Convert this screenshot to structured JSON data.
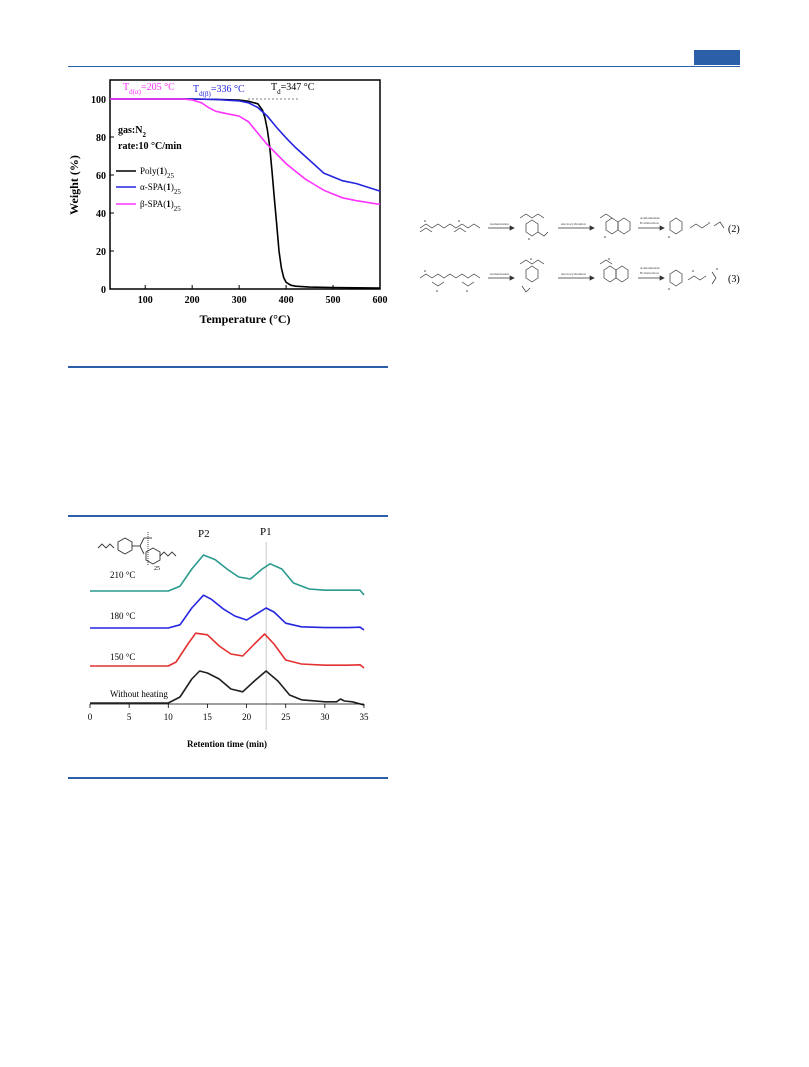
{
  "colors": {
    "accent": "#2b5fa8",
    "black": "#000000",
    "blue": "#2525e0",
    "magenta": "#ff33ff",
    "teal": "#2a9a8e",
    "red": "#e33030",
    "dark": "#202020"
  },
  "tga": {
    "ylabel": "Weight (%)",
    "xlabel": "Temperature (°C)",
    "conditions": [
      "gas:N2",
      "rate:10 °C/min"
    ],
    "annotations": {
      "td_alpha": "Td(α)=205 °C",
      "td_beta": "Td(β)=336 °C",
      "td": "Td=347 °C"
    },
    "legend": [
      "Poly(1)25",
      "α-SPA(1)25",
      "β-SPA(1)25"
    ]
  },
  "gpc": {
    "xlabel": "Retention time (min)",
    "peaks": [
      "P2",
      "P1"
    ],
    "trace_labels": [
      "210 °C",
      "180 °C",
      "150 °C",
      "Without heating"
    ],
    "structure_subscript": "25"
  },
  "schemes": {
    "eq2": "(2)",
    "eq3": "(3)",
    "step_labels": {
      "isom": "isomerization",
      "electro": "electrocyclization",
      "arom": "aromatization/",
      "habs": "H abstraction",
      "r": "R"
    }
  },
  "chart_data": [
    {
      "type": "line",
      "title": "",
      "xlabel": "Temperature (°C)",
      "ylabel": "Weight (%)",
      "xlim": [
        25,
        600
      ],
      "ylim": [
        0,
        110
      ],
      "xticks": [
        100,
        200,
        300,
        400,
        500,
        600
      ],
      "yticks": [
        0,
        20,
        40,
        60,
        80,
        100
      ],
      "legend_position": "left",
      "series": [
        {
          "name": "Poly(1)25",
          "color": "#000000",
          "x": [
            25,
            100,
            200,
            250,
            300,
            320,
            340,
            350,
            355,
            360,
            365,
            370,
            375,
            380,
            385,
            390,
            395,
            400,
            410,
            420,
            450,
            500,
            600
          ],
          "y": [
            100,
            100,
            100,
            99.8,
            99.4,
            98.8,
            97.5,
            94,
            90,
            84,
            75,
            62,
            48,
            34,
            20,
            11,
            6,
            3.5,
            2,
            1.5,
            1,
            0.8,
            0.5
          ]
        },
        {
          "name": "α-SPA(1)25",
          "color": "#2525e0",
          "x": [
            25,
            100,
            200,
            250,
            300,
            320,
            340,
            360,
            380,
            400,
            420,
            440,
            460,
            480,
            500,
            520,
            550,
            600
          ],
          "y": [
            100,
            100,
            100,
            99.8,
            99,
            98,
            95.5,
            91,
            85,
            79.5,
            74.5,
            70,
            65.5,
            61,
            59,
            57,
            55.5,
            51.5
          ]
        },
        {
          "name": "β-SPA(1)25",
          "color": "#ff33ff",
          "x": [
            25,
            100,
            180,
            200,
            220,
            235,
            250,
            270,
            300,
            320,
            340,
            360,
            380,
            400,
            420,
            440,
            460,
            480,
            500,
            520,
            550,
            600
          ],
          "y": [
            100,
            100,
            100,
            99.5,
            98,
            95.5,
            93.5,
            92.5,
            91,
            88,
            82,
            76,
            71,
            66,
            62,
            58,
            55,
            52,
            50,
            48,
            46.5,
            44.5
          ]
        }
      ]
    },
    {
      "type": "line",
      "title": "",
      "xlabel": "Retention time (min)",
      "ylabel": "",
      "xlim": [
        0,
        35
      ],
      "xticks": [
        0,
        5,
        10,
        15,
        20,
        25,
        30,
        35
      ],
      "reference_line_x": 22.5,
      "series": [
        {
          "name": "210 °C",
          "color": "#2a9a8e",
          "x": [
            0,
            10,
            11.5,
            13,
            14.5,
            16,
            17.5,
            19,
            20.5,
            22,
            23,
            24.5,
            26,
            28,
            30,
            33,
            34.5,
            35
          ],
          "y": [
            0,
            0,
            0.12,
            0.55,
            0.9,
            0.78,
            0.55,
            0.35,
            0.3,
            0.55,
            0.68,
            0.55,
            0.2,
            0.05,
            0.02,
            0.02,
            0.02,
            -0.1
          ]
        },
        {
          "name": "180 °C",
          "color": "#2525e0",
          "x": [
            0,
            10,
            11.5,
            13,
            14.5,
            15.5,
            17,
            18.5,
            20,
            21.5,
            22.5,
            23.5,
            25,
            27,
            30,
            33,
            34.5,
            35
          ],
          "y": [
            0,
            0,
            0.08,
            0.5,
            0.82,
            0.72,
            0.48,
            0.3,
            0.2,
            0.38,
            0.5,
            0.4,
            0.12,
            0.03,
            0.01,
            0.01,
            0.02,
            -0.05
          ]
        },
        {
          "name": "150 °C",
          "color": "#e33030",
          "x": [
            0,
            10,
            11,
            12.5,
            13.5,
            15,
            16.5,
            18,
            19.5,
            21,
            22.3,
            23.5,
            25,
            27,
            30,
            33,
            34.5,
            35
          ],
          "y": [
            0,
            0,
            0.1,
            0.55,
            0.82,
            0.78,
            0.5,
            0.3,
            0.25,
            0.55,
            0.8,
            0.55,
            0.15,
            0.05,
            0.02,
            0.02,
            0.03,
            -0.05
          ]
        },
        {
          "name": "Without heating",
          "color": "#202020",
          "x": [
            0,
            10,
            11.5,
            13,
            14,
            15,
            16.5,
            18,
            19.5,
            21,
            22.5,
            24,
            25.5,
            27,
            30,
            31.5,
            32,
            32.5,
            33.5,
            35
          ],
          "y": [
            0,
            0,
            0.15,
            0.6,
            0.8,
            0.75,
            0.6,
            0.35,
            0.28,
            0.55,
            0.8,
            0.55,
            0.2,
            0.08,
            0.03,
            0.03,
            0.1,
            0.05,
            0.03,
            -0.05
          ]
        }
      ]
    }
  ]
}
